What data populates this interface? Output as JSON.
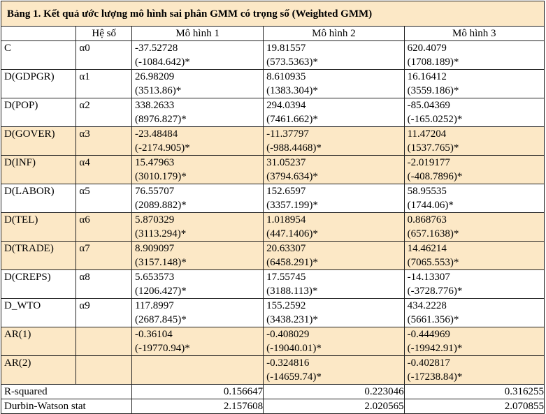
{
  "table": {
    "title": "Bảng 1. Kết quả ước lượng mô hình sai phân GMM có trọng số (Weighted GMM)",
    "headers": [
      "",
      "Hệ số",
      "Mô hình 1",
      "Mô hình 2",
      "Mô hình 3"
    ],
    "rows": [
      {
        "var": "C",
        "coef": "α0",
        "m1": [
          "-37.52728",
          "(-1084.642)*"
        ],
        "m2": [
          "19.81557",
          "(573.5363)*"
        ],
        "m3": [
          "620.4079",
          "(1708.189)*"
        ]
      },
      {
        "var": "D(GDPGR)",
        "coef": "α1",
        "m1": [
          "26.98209",
          "(3513.86)*"
        ],
        "m2": [
          "8.610935",
          "(1383.304)*"
        ],
        "m3": [
          "16.16412",
          "(3559.186)*"
        ]
      },
      {
        "var": "D(POP)",
        "coef": "α2",
        "m1": [
          "338.2633",
          "(8976.827)*"
        ],
        "m2": [
          "294.0394",
          "(7461.662)*"
        ],
        "m3": [
          "-85.04369",
          "(-165.0252)*"
        ]
      },
      {
        "var": "D(GOVER)",
        "coef": "α3",
        "m1": [
          "-23.48484",
          "(-2174.905)*"
        ],
        "m2": [
          "-11.37797",
          "(-988.4468)*"
        ],
        "m3": [
          "11.47204",
          "(1537.765)*"
        ]
      },
      {
        "var": "D(INF)",
        "coef": "α4",
        "m1": [
          "15.47963",
          "(3010.179)*"
        ],
        "m2": [
          "31.05237",
          "(3794.634)*"
        ],
        "m3": [
          "-2.019177",
          "(-408.7896)*"
        ]
      },
      {
        "var": "D(LABOR)",
        "coef": "α5",
        "m1": [
          "76.55707",
          "(2089.882)*"
        ],
        "m2": [
          "152.6597",
          "(3357.199)*"
        ],
        "m3": [
          "58.95535",
          "(1744.06)*"
        ]
      },
      {
        "var": "D(TEL)",
        "coef": "α6",
        "m1": [
          "5.870329",
          "(3113.294)*"
        ],
        "m2": [
          "1.018954",
          "(447.1406)*"
        ],
        "m3": [
          "0.868763",
          "(657.1638)*"
        ]
      },
      {
        "var": "D(TRADE)",
        "coef": "α7",
        "m1": [
          "8.909097",
          "(3157.148)*"
        ],
        "m2": [
          "20.63307",
          "(6458.291)*"
        ],
        "m3": [
          "14.46214",
          "(7065.553)*"
        ]
      },
      {
        "var": "D(CREPS)",
        "coef": "α8",
        "m1": [
          "5.653573",
          "(1206.427)*"
        ],
        "m2": [
          "17.55745",
          "(3188.113)*"
        ],
        "m3": [
          "-14.13307",
          "(-3728.776)*"
        ]
      },
      {
        "var": "D_WTO",
        "coef": "α9",
        "m1": [
          "117.8997",
          "(2687.845)*"
        ],
        "m2": [
          "155.2592",
          "(3438.231)*"
        ],
        "m3": [
          "434.2228",
          "(5661.356)*"
        ]
      },
      {
        "var": "AR(1)",
        "coef": "",
        "m1": [
          "-0.36104",
          "(-19770.94)*"
        ],
        "m2": [
          "-0.408029",
          "(-19040.01)*"
        ],
        "m3": [
          "-0.444969",
          "(-19942.91)*"
        ]
      },
      {
        "var": "AR(2)",
        "coef": "",
        "m1": [
          "",
          ""
        ],
        "m2": [
          "-0.324816",
          "(-14659.74)*"
        ],
        "m3": [
          "-0.402817",
          "(-17238.84)*"
        ]
      }
    ],
    "stats": [
      {
        "label": "R-squared",
        "m1": "0.156647",
        "m2": "0.223046",
        "m3": "0.316255"
      },
      {
        "label": "Durbin-Watson stat",
        "m1": "2.157608",
        "m2": "2.020565",
        "m3": "2.070855"
      }
    ],
    "shade_color": "#fce8c6"
  }
}
